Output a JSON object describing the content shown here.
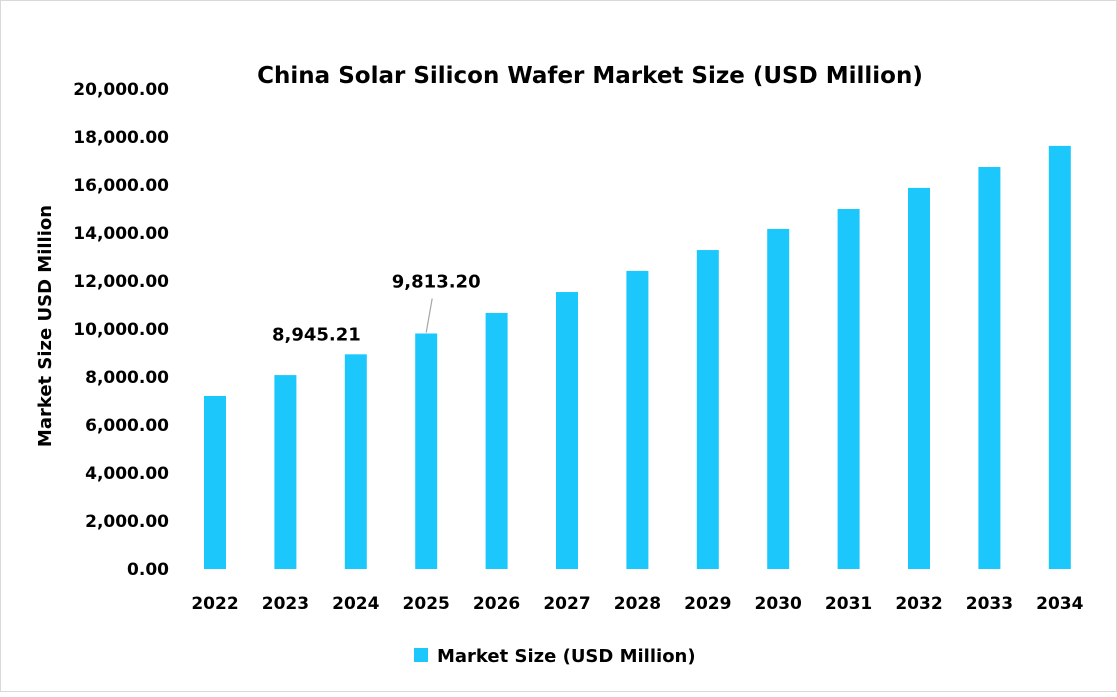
{
  "chart_data": {
    "type": "bar",
    "title": "China Solar Silicon Wafer Market Size (USD Million)",
    "xlabel": "",
    "ylabel": "Market Size USD Million",
    "ylim": [
      0,
      20000
    ],
    "yticks": [
      "0.00",
      "2,000.00",
      "4,000.00",
      "6,000.00",
      "8,000.00",
      "10,000.00",
      "12,000.00",
      "14,000.00",
      "16,000.00",
      "18,000.00",
      "20,000.00"
    ],
    "grid": false,
    "legend_position": "bottom",
    "bar_color": "#1cc8fb",
    "categories": [
      "2022",
      "2023",
      "2024",
      "2025",
      "2026",
      "2027",
      "2028",
      "2029",
      "2030",
      "2031",
      "2032",
      "2033",
      "2034"
    ],
    "series": [
      {
        "name": "Market Size (USD Million)",
        "values": [
          7210,
          8080,
          8945.21,
          9813.2,
          10670,
          11540,
          12420,
          13290,
          14170,
          15000,
          15880,
          16750,
          17630
        ]
      }
    ],
    "data_labels": [
      {
        "category": "2024",
        "text": "8,945.21"
      },
      {
        "category": "2025",
        "text": "9,813.20"
      }
    ]
  }
}
